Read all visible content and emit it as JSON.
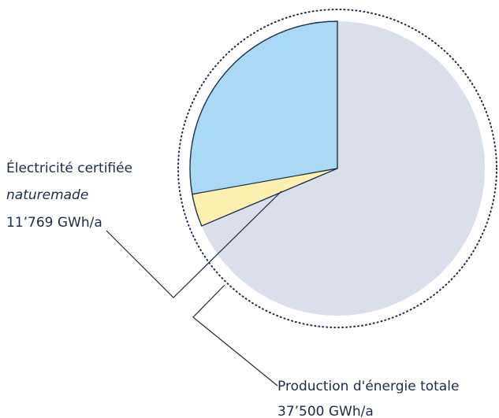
{
  "chart_data": {
    "type": "pie",
    "total": {
      "label": "Production d'énergie totale",
      "value": 37500,
      "value_label": "37’500 GWh/a",
      "color": "#d9e0eb"
    },
    "highlight": {
      "label": "Électricité certifiée",
      "label_italic": "naturemade",
      "value": 11769,
      "value_label": "11’769 GWh/a",
      "parts": [
        {
          "value": 10425,
          "color": "#a9d9f5"
        },
        {
          "value": 1344,
          "color": "#fdf1b0"
        }
      ]
    }
  }
}
